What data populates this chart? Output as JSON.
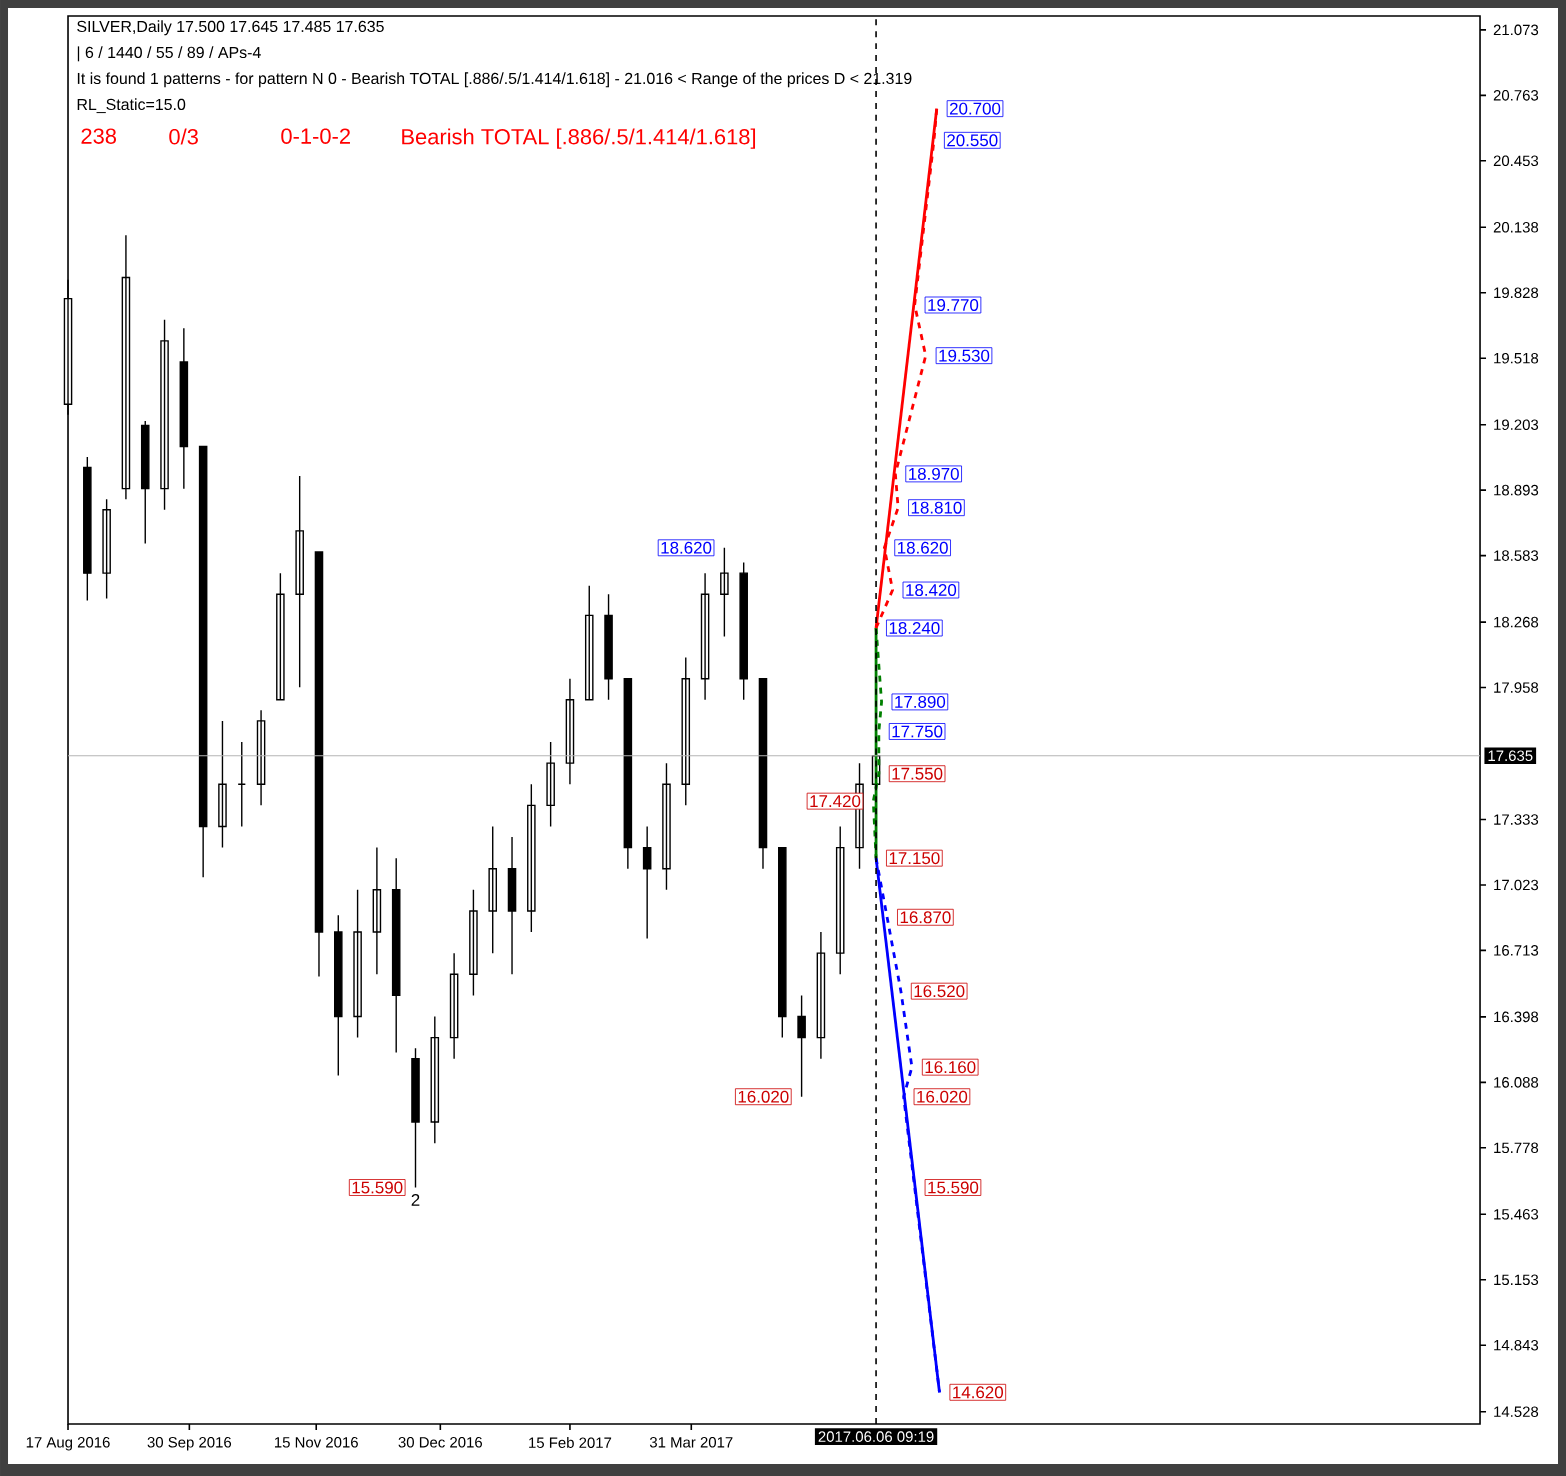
{
  "chart_data": {
    "type": "candlestick",
    "title": "SILVER,Daily  17.500 17.645 17.485 17.635",
    "subtitle": "| 6 / 1440 / 55 / 89 / APs-4",
    "annotations": [
      "It is found 1 patterns  -  for pattern N 0 - Bearish TOTAL [.886/.5/1.414/1.618] - 21.016 < Range of the prices D < 21.319",
      "RL_Static=15.0",
      "238",
      "0/3",
      "0-1-0-2",
      "Bearish TOTAL [.886/.5/1.414/1.618]",
      {
        "text": "20.700",
        "x": "2017-06-28",
        "y": 20.7
      },
      {
        "text": "20.550",
        "x": "2017-06-27",
        "y": 20.55
      },
      {
        "text": "19.770",
        "x": "2017-06-20",
        "y": 19.77
      },
      {
        "text": "19.530",
        "x": "2017-06-24",
        "y": 19.53
      },
      {
        "text": "18.970",
        "x": "2017-06-13",
        "y": 18.97
      },
      {
        "text": "18.810",
        "x": "2017-06-14",
        "y": 18.81
      },
      {
        "text": "18.620",
        "x": "2017-06-09",
        "y": 18.62
      },
      {
        "text": "18.420",
        "x": "2017-06-12",
        "y": 18.42
      },
      {
        "text": "18.240",
        "x": "2017-06-06",
        "y": 18.24
      },
      {
        "text": "17.890",
        "x": "2017-06-08",
        "y": 17.89
      },
      {
        "text": "17.750",
        "x": "2017-06-07",
        "y": 17.75
      },
      {
        "text": "17.550",
        "x": "2017-06-07",
        "y": 17.55
      },
      {
        "text": "17.420",
        "x": "2017-06-05",
        "y": 17.42
      },
      {
        "text": "17.150",
        "x": "2017-06-06",
        "y": 17.15
      },
      {
        "text": "16.870",
        "x": "2017-06-10",
        "y": 16.87
      },
      {
        "text": "16.520",
        "x": "2017-06-15",
        "y": 16.52
      },
      {
        "text": "16.160",
        "x": "2017-06-19",
        "y": 16.16
      },
      {
        "text": "16.020",
        "x": "2017-06-16",
        "y": 16.02
      },
      {
        "text": "15.590",
        "x": "2017-06-20",
        "y": 15.59
      },
      {
        "text": "14.620",
        "x": "2017-06-29",
        "y": 14.62
      },
      {
        "text": "18.620",
        "x": "2017-04-12",
        "y": 18.62
      },
      {
        "text": "16.020",
        "x": "2017-05-10",
        "y": 16.02
      },
      {
        "text": "15.590",
        "x": "2016-12-21",
        "y": 15.59
      },
      {
        "text": "2",
        "x": "2016-12-21",
        "y": 15.59
      }
    ],
    "xlim": [
      "2016-08-17",
      "2018-01-11"
    ],
    "xticks": [
      {
        "value": "2016-08-17",
        "label": "17 Aug 2016"
      },
      {
        "value": "2016-09-30",
        "label": "30 Sep 2016"
      },
      {
        "value": "2016-11-15",
        "label": "15 Nov 2016"
      },
      {
        "value": "2016-12-30",
        "label": "30 Dec 2016"
      },
      {
        "value": "2017-02-15",
        "label": "15 Feb 2017"
      },
      {
        "value": "2017-03-31",
        "label": "31 Mar 2017"
      }
    ],
    "ylim": [
      14.47,
      21.139
    ],
    "yticks": [
      14.528,
      14.843,
      15.153,
      15.463,
      15.778,
      16.088,
      16.398,
      16.713,
      17.023,
      17.333,
      17.958,
      18.268,
      18.583,
      18.893,
      19.203,
      19.518,
      19.828,
      20.138,
      20.453,
      20.763,
      21.073
    ],
    "ref_lines": [
      {
        "axis": "y",
        "value": 17.635,
        "label": "17.635",
        "color": "#b4b4b4"
      },
      {
        "axis": "x",
        "value": "2017-06-06",
        "label": "2017.06.06 09:19",
        "color": "#000000",
        "line_style": "dashed"
      }
    ],
    "series": [
      {
        "color": "#000000",
        "x": [
          "2016-08-17",
          "2016-08-24",
          "2016-08-31",
          "2016-09-07",
          "2016-09-14",
          "2016-09-21",
          "2016-09-28",
          "2016-10-05",
          "2016-10-12",
          "2016-10-19",
          "2016-10-26",
          "2016-11-02",
          "2016-11-09",
          "2016-11-16",
          "2016-11-23",
          "2016-11-30",
          "2016-12-07",
          "2016-12-14",
          "2016-12-21",
          "2016-12-28",
          "2017-01-04",
          "2017-01-11",
          "2017-01-18",
          "2017-01-25",
          "2017-02-01",
          "2017-02-08",
          "2017-02-15",
          "2017-02-22",
          "2017-03-01",
          "2017-03-08",
          "2017-03-15",
          "2017-03-22",
          "2017-03-29",
          "2017-04-05",
          "2017-04-12",
          "2017-04-19",
          "2017-04-26",
          "2017-05-03",
          "2017-05-10",
          "2017-05-17",
          "2017-05-24",
          "2017-05-31",
          "2017-06-06"
        ],
        "ohlc": [
          [
            19.3,
            19.89,
            19.25,
            19.8
          ],
          [
            19.0,
            19.05,
            18.37,
            18.5
          ],
          [
            18.5,
            18.85,
            18.38,
            18.8
          ],
          [
            18.9,
            20.1,
            18.85,
            19.9
          ],
          [
            19.2,
            19.22,
            18.64,
            18.9
          ],
          [
            18.9,
            19.7,
            18.8,
            19.6
          ],
          [
            19.5,
            19.66,
            18.9,
            19.1
          ],
          [
            19.1,
            19.1,
            17.06,
            17.3
          ],
          [
            17.3,
            17.8,
            17.2,
            17.5
          ],
          [
            17.5,
            17.7,
            17.3,
            17.5
          ],
          [
            17.5,
            17.85,
            17.4,
            17.8
          ],
          [
            17.9,
            18.5,
            17.9,
            18.4
          ],
          [
            18.4,
            18.96,
            17.96,
            18.7
          ],
          [
            18.6,
            18.6,
            16.59,
            16.8
          ],
          [
            16.8,
            16.88,
            16.12,
            16.4
          ],
          [
            16.4,
            17.0,
            16.3,
            16.8
          ],
          [
            16.8,
            17.2,
            16.6,
            17.0
          ],
          [
            17.0,
            17.15,
            16.23,
            16.5
          ],
          [
            16.2,
            16.25,
            15.59,
            15.9
          ],
          [
            15.9,
            16.4,
            15.8,
            16.3
          ],
          [
            16.3,
            16.7,
            16.2,
            16.6
          ],
          [
            16.6,
            17.0,
            16.5,
            16.9
          ],
          [
            16.9,
            17.3,
            16.7,
            17.1
          ],
          [
            17.1,
            17.25,
            16.6,
            16.9
          ],
          [
            16.9,
            17.5,
            16.8,
            17.4
          ],
          [
            17.4,
            17.7,
            17.3,
            17.6
          ],
          [
            17.6,
            18.0,
            17.5,
            17.9
          ],
          [
            17.9,
            18.44,
            17.9,
            18.3
          ],
          [
            18.3,
            18.4,
            17.9,
            18.0
          ],
          [
            18.0,
            18.0,
            17.1,
            17.2
          ],
          [
            17.2,
            17.3,
            16.77,
            17.1
          ],
          [
            17.1,
            17.6,
            17.0,
            17.5
          ],
          [
            17.5,
            18.1,
            17.4,
            18.0
          ],
          [
            18.0,
            18.5,
            17.9,
            18.4
          ],
          [
            18.4,
            18.62,
            18.2,
            18.5
          ],
          [
            18.5,
            18.55,
            17.9,
            18.0
          ],
          [
            18.0,
            18.0,
            17.1,
            17.2
          ],
          [
            17.2,
            17.2,
            16.3,
            16.4
          ],
          [
            16.4,
            16.5,
            16.02,
            16.3
          ],
          [
            16.3,
            16.8,
            16.2,
            16.7
          ],
          [
            16.7,
            17.3,
            16.6,
            17.2
          ],
          [
            17.2,
            17.6,
            17.1,
            17.5
          ],
          [
            17.5,
            17.645,
            17.485,
            17.635
          ]
        ]
      },
      {
        "type": "line",
        "color": "#008000",
        "x": [
          "2017-06-06",
          "2017-06-06"
        ],
        "values": [
          17.15,
          18.24
        ]
      },
      {
        "type": "line",
        "color": "#008000",
        "line_style": "dashed",
        "x": [
          "2017-06-06",
          "2017-06-08",
          "2017-06-07",
          "2017-06-07",
          "2017-06-05",
          "2017-06-06"
        ],
        "values": [
          18.24,
          17.89,
          17.75,
          17.55,
          17.42,
          17.15
        ]
      },
      {
        "type": "line",
        "color": "#ff0000",
        "x": [
          "2017-06-06",
          "2017-06-28"
        ],
        "values": [
          18.24,
          20.7
        ]
      },
      {
        "type": "line",
        "color": "#ff0000",
        "line_style": "dashed",
        "x": [
          "2017-06-06",
          "2017-06-12",
          "2017-06-09",
          "2017-06-14",
          "2017-06-13",
          "2017-06-24",
          "2017-06-20",
          "2017-06-27",
          "2017-06-28"
        ],
        "values": [
          18.24,
          18.42,
          18.62,
          18.81,
          18.97,
          19.53,
          19.77,
          20.55,
          20.7
        ]
      },
      {
        "type": "line",
        "color": "#0000ff",
        "x": [
          "2017-06-06",
          "2017-06-29"
        ],
        "values": [
          17.15,
          14.62
        ]
      },
      {
        "type": "line",
        "color": "#0000ff",
        "line_style": "dashed",
        "x": [
          "2017-06-06",
          "2017-06-10",
          "2017-06-15",
          "2017-06-19",
          "2017-06-16",
          "2017-06-20",
          "2017-06-29"
        ],
        "values": [
          17.15,
          16.87,
          16.52,
          16.16,
          16.02,
          15.59,
          14.62
        ]
      }
    ]
  }
}
